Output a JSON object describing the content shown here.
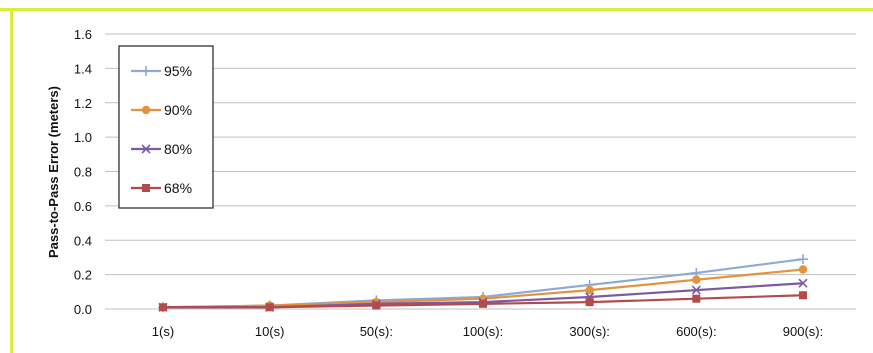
{
  "chart_data": {
    "type": "line",
    "title": "",
    "xlabel": "",
    "ylabel": "Pass-to-Pass Error (meters)",
    "categories": [
      "1(s)",
      "10(s)",
      "50(s):",
      "100(s):",
      "300(s):",
      "600(s):",
      "900(s):"
    ],
    "ylim": [
      0,
      1.6
    ],
    "yticks": [
      "0.0",
      "0.2",
      "0.4",
      "0.6",
      "0.8",
      "1.0",
      "1.2",
      "1.4",
      "1.6"
    ],
    "grid": true,
    "legend_position": "top-left",
    "series": [
      {
        "name": "95%",
        "color": "#8fa9d6",
        "marker": "plus",
        "values": [
          0.01,
          0.02,
          0.05,
          0.07,
          0.14,
          0.21,
          0.29
        ]
      },
      {
        "name": "90%",
        "color": "#e3923e",
        "marker": "circle",
        "values": [
          0.01,
          0.02,
          0.04,
          0.06,
          0.11,
          0.17,
          0.23
        ]
      },
      {
        "name": "80%",
        "color": "#7b5aa6",
        "marker": "x",
        "values": [
          0.01,
          0.01,
          0.03,
          0.04,
          0.07,
          0.11,
          0.15
        ]
      },
      {
        "name": "68%",
        "color": "#b24c4c",
        "marker": "square",
        "values": [
          0.01,
          0.01,
          0.02,
          0.03,
          0.04,
          0.06,
          0.08
        ]
      }
    ]
  }
}
